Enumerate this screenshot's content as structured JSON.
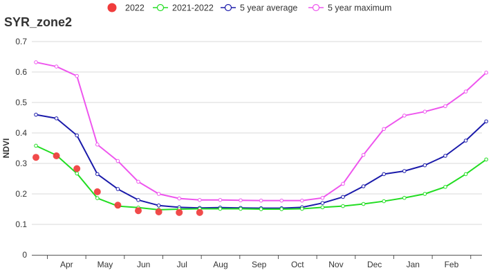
{
  "chart_data": {
    "type": "line",
    "title": "SYR_zone2",
    "xlabel": "",
    "ylabel": "NDVI",
    "ylim": [
      0,
      0.7
    ],
    "yticks": [
      "0",
      "0.1",
      "0.2",
      "0.3",
      "0.4",
      "0.5",
      "0.6",
      "0.7"
    ],
    "grid": true,
    "legend_position": "top",
    "month_labels": [
      "Apr",
      "May",
      "Jun",
      "Jul",
      "Aug",
      "Sep",
      "Oct",
      "Nov",
      "Dec",
      "Jan",
      "Feb"
    ],
    "series": [
      {
        "name": "2022",
        "style": "dots",
        "color": "#f03c3c",
        "values": [
          0.32,
          0.325,
          0.283,
          0.207,
          0.163,
          0.145,
          0.141,
          0.139,
          0.139
        ]
      },
      {
        "name": "2021-2022",
        "style": "line",
        "color": "#22dd22",
        "values": [
          0.358,
          0.327,
          0.267,
          0.186,
          0.16,
          0.155,
          0.148,
          0.15,
          0.151,
          0.151,
          0.151,
          0.15,
          0.15,
          0.151,
          0.156,
          0.16,
          0.167,
          0.176,
          0.187,
          0.2,
          0.223,
          0.265,
          0.313
        ]
      },
      {
        "name": "5 year average",
        "style": "line",
        "color": "#1a1aaa",
        "values": [
          0.46,
          0.448,
          0.392,
          0.265,
          0.216,
          0.18,
          0.162,
          0.156,
          0.154,
          0.155,
          0.154,
          0.153,
          0.153,
          0.156,
          0.17,
          0.19,
          0.225,
          0.265,
          0.275,
          0.294,
          0.325,
          0.375,
          0.438
        ]
      },
      {
        "name": "5 year maximum",
        "style": "line",
        "color": "#ee55ee",
        "values": [
          0.632,
          0.618,
          0.587,
          0.362,
          0.308,
          0.24,
          0.2,
          0.185,
          0.18,
          0.18,
          0.179,
          0.178,
          0.178,
          0.178,
          0.187,
          0.233,
          0.328,
          0.413,
          0.457,
          0.47,
          0.488,
          0.536,
          0.598
        ]
      }
    ]
  }
}
